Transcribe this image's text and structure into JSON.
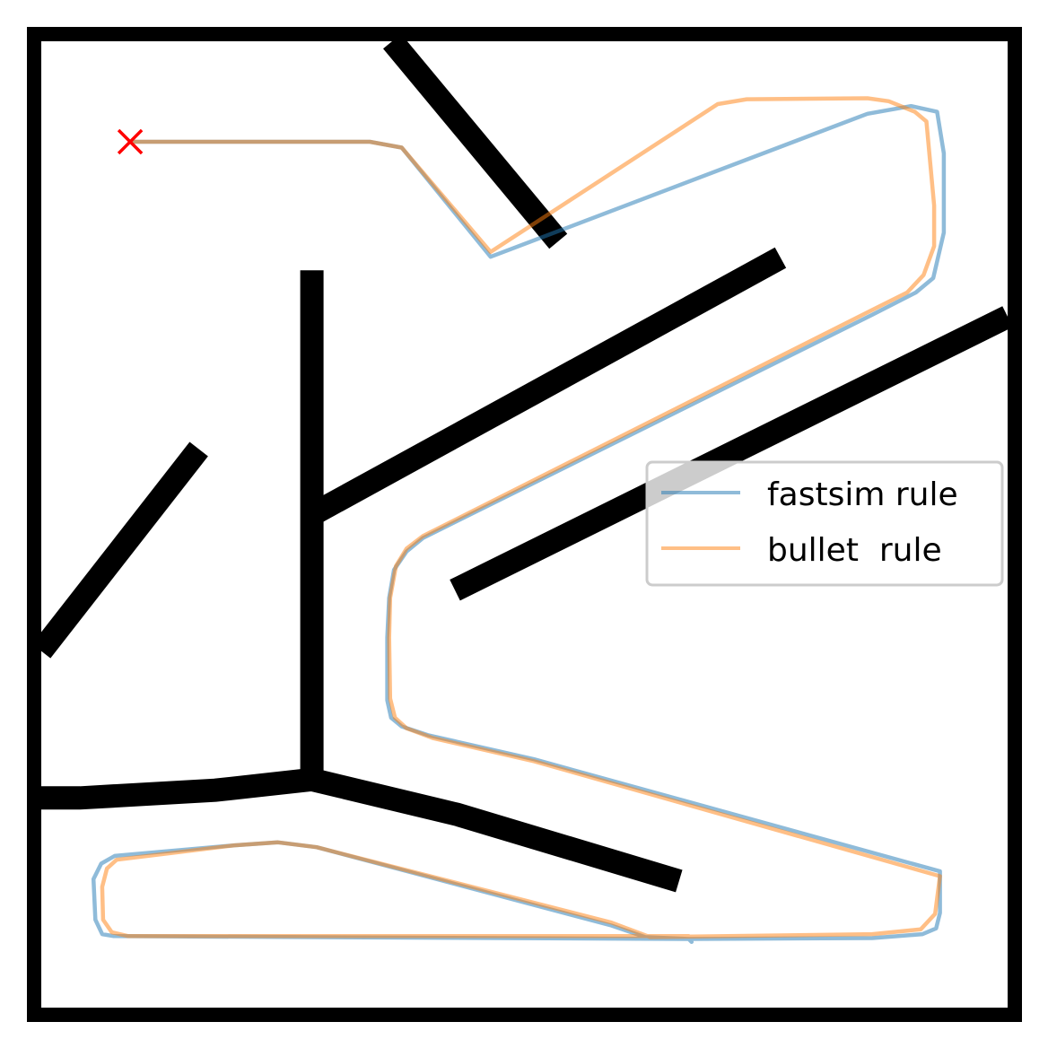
{
  "chart_data": {
    "type": "line",
    "xlim": [
      0,
      1
    ],
    "ylim": [
      0,
      1
    ],
    "grid": false,
    "legend": {
      "placement": "center-right"
    },
    "colors": {
      "frame": "#000000",
      "wall": "#000000",
      "fastsim": "#1f77b4",
      "bullet": "#ff7f0e",
      "goal_marker": "#ff0000"
    },
    "walls": [
      {
        "name": "wall-top-branch",
        "points": [
          [
            0,
            0.783
          ],
          [
            0.04,
            0.783
          ],
          [
            0.18,
            0.775
          ],
          [
            0.28,
            0.764
          ],
          [
            0.43,
            0.8
          ],
          [
            0.66,
            0.869
          ]
        ]
      },
      {
        "name": "wall-vertical-stem",
        "points": [
          [
            0.28,
            0.764
          ],
          [
            0.28,
            0.237
          ]
        ]
      },
      {
        "name": "wall-left-diagonal",
        "points": [
          [
            0,
            0.631
          ],
          [
            0.163,
            0.422
          ]
        ]
      },
      {
        "name": "wall-middle-diagonal",
        "points": [
          [
            0.28,
            0.49
          ],
          [
            0.765,
            0.224
          ]
        ]
      },
      {
        "name": "wall-right-diagonal",
        "points": [
          [
            0.428,
            0.568
          ],
          [
            1.0,
            0.285
          ]
        ]
      },
      {
        "name": "wall-bottom-diagonal",
        "points": [
          [
            0.535,
            0.207
          ],
          [
            0.363,
            0.0
          ]
        ]
      }
    ],
    "series": [
      {
        "name": "fastsim rule",
        "color": "#1f77b4",
        "points": [
          [
            0.092,
            0.104
          ],
          [
            0.34,
            0.104
          ],
          [
            0.373,
            0.11
          ],
          [
            0.465,
            0.223
          ],
          [
            0.855,
            0.075
          ],
          [
            0.9,
            0.067
          ],
          [
            0.927,
            0.073
          ],
          [
            0.934,
            0.116
          ],
          [
            0.934,
            0.198
          ],
          [
            0.923,
            0.245
          ],
          [
            0.905,
            0.26
          ],
          [
            0.86,
            0.283
          ],
          [
            0.395,
            0.514
          ],
          [
            0.378,
            0.528
          ],
          [
            0.365,
            0.547
          ],
          [
            0.36,
            0.576
          ],
          [
            0.358,
            0.617
          ],
          [
            0.358,
            0.682
          ],
          [
            0.362,
            0.7
          ],
          [
            0.373,
            0.709
          ],
          [
            0.4,
            0.718
          ],
          [
            0.51,
            0.743
          ],
          [
            0.93,
            0.859
          ],
          [
            0.93,
            0.902
          ],
          [
            0.926,
            0.918
          ],
          [
            0.912,
            0.924
          ],
          [
            0.86,
            0.928
          ],
          [
            0.67,
            0.929
          ],
          [
            0.625,
            0.927
          ],
          [
            0.59,
            0.915
          ],
          [
            0.285,
            0.834
          ],
          [
            0.245,
            0.829
          ],
          [
            0.2,
            0.832
          ],
          [
            0.076,
            0.843
          ],
          [
            0.062,
            0.851
          ],
          [
            0.054,
            0.867
          ],
          [
            0.056,
            0.909
          ],
          [
            0.063,
            0.924
          ],
          [
            0.075,
            0.926
          ],
          [
            0.67,
            0.929
          ],
          [
            0.673,
            0.932
          ]
        ]
      },
      {
        "name": "bullet  rule",
        "color": "#ff7f0e",
        "points": [
          [
            0.092,
            0.104
          ],
          [
            0.34,
            0.104
          ],
          [
            0.373,
            0.11
          ],
          [
            0.465,
            0.218
          ],
          [
            0.7,
            0.065
          ],
          [
            0.73,
            0.06
          ],
          [
            0.855,
            0.059
          ],
          [
            0.877,
            0.062
          ],
          [
            0.904,
            0.073
          ],
          [
            0.916,
            0.083
          ],
          [
            0.924,
            0.17
          ],
          [
            0.924,
            0.212
          ],
          [
            0.913,
            0.242
          ],
          [
            0.896,
            0.26
          ],
          [
            0.86,
            0.278
          ],
          [
            0.395,
            0.512
          ],
          [
            0.378,
            0.525
          ],
          [
            0.367,
            0.543
          ],
          [
            0.361,
            0.576
          ],
          [
            0.36,
            0.617
          ],
          [
            0.361,
            0.68
          ],
          [
            0.366,
            0.7
          ],
          [
            0.378,
            0.711
          ],
          [
            0.405,
            0.721
          ],
          [
            0.51,
            0.745
          ],
          [
            0.93,
            0.864
          ],
          [
            0.925,
            0.903
          ],
          [
            0.91,
            0.919
          ],
          [
            0.86,
            0.924
          ],
          [
            0.63,
            0.927
          ],
          [
            0.59,
            0.912
          ],
          [
            0.285,
            0.834
          ],
          [
            0.245,
            0.829
          ],
          [
            0.2,
            0.832
          ],
          [
            0.078,
            0.847
          ],
          [
            0.068,
            0.856
          ],
          [
            0.063,
            0.875
          ],
          [
            0.064,
            0.909
          ],
          [
            0.073,
            0.922
          ],
          [
            0.09,
            0.926
          ],
          [
            0.67,
            0.926
          ]
        ]
      }
    ],
    "markers": [
      {
        "name": "goal-marker",
        "symbol": "x",
        "color": "#ff0000",
        "x": 0.092,
        "y": 0.104
      }
    ],
    "legend_entries": [
      "fastsim rule",
      "bullet  rule"
    ]
  }
}
